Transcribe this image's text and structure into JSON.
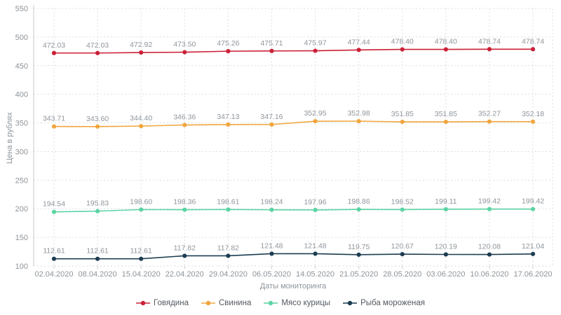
{
  "chart_data": {
    "type": "line",
    "xlabel": "Даты мониторинга",
    "ylabel": "Цена в рублях",
    "ylim": [
      100,
      550
    ],
    "ytick_step": 50,
    "grid": true,
    "legend_position": "bottom",
    "x": [
      "02.04.2020",
      "08.04.2020",
      "15.04.2020",
      "22.04.2020",
      "29.04.2020",
      "06.05.2020",
      "14.05.2020",
      "21.05.2020",
      "28.05.2020",
      "03.06.2020",
      "10.06.2020",
      "17.06.2020"
    ],
    "series": [
      {
        "name": "Говядина",
        "color": "#cb2036",
        "values": [
          472.03,
          472.03,
          472.92,
          473.5,
          475.26,
          475.71,
          475.97,
          477.44,
          478.4,
          478.4,
          478.74,
          478.74
        ]
      },
      {
        "name": "Свинина",
        "color": "#f0a63e",
        "values": [
          343.71,
          343.6,
          344.4,
          346.36,
          347.13,
          347.16,
          352.95,
          352.98,
          351.85,
          351.85,
          352.27,
          352.18
        ]
      },
      {
        "name": "Мясо курицы",
        "color": "#5bd4a4",
        "values": [
          194.54,
          195.83,
          198.6,
          198.36,
          198.61,
          198.24,
          197.96,
          198.86,
          198.52,
          199.11,
          199.42,
          199.42
        ]
      },
      {
        "name": "Рыба мороженая",
        "color": "#1c3d52",
        "values": [
          112.61,
          112.61,
          112.61,
          117.82,
          117.82,
          121.48,
          121.48,
          119.75,
          120.67,
          120.19,
          120.08,
          121.04
        ]
      }
    ]
  }
}
